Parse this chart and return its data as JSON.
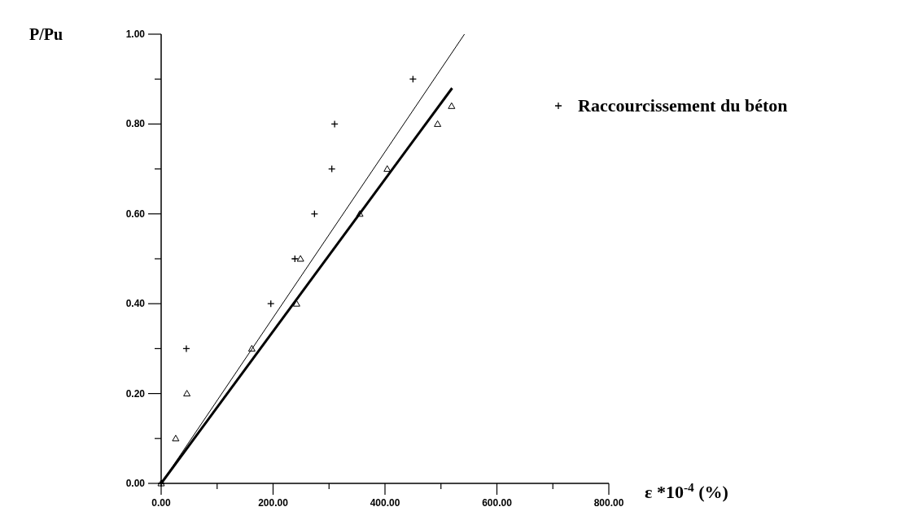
{
  "chart_data": {
    "type": "scatter",
    "xlabel": "ε *10$^{-4}$ (%)",
    "ylabel": "P/Pu",
    "xlim": [
      0,
      800
    ],
    "ylim": [
      0,
      1
    ],
    "xticks": [
      {
        "value": 0,
        "label": "0.00"
      },
      {
        "value": 100,
        "label": null
      },
      {
        "value": 200,
        "label": "200.00"
      },
      {
        "value": 300,
        "label": null
      },
      {
        "value": 400,
        "label": "400.00"
      },
      {
        "value": 500,
        "label": null
      },
      {
        "value": 600,
        "label": "600.00"
      },
      {
        "value": 700,
        "label": null
      },
      {
        "value": 800,
        "label": "800.00"
      }
    ],
    "yticks": [
      {
        "value": 0,
        "label": "0.00"
      },
      {
        "value": 0.1,
        "label": null
      },
      {
        "value": 0.2,
        "label": "0.20"
      },
      {
        "value": 0.3,
        "label": null
      },
      {
        "value": 0.4,
        "label": "0.40"
      },
      {
        "value": 0.5,
        "label": null
      },
      {
        "value": 0.6,
        "label": "0.60"
      },
      {
        "value": 0.7,
        "label": null
      },
      {
        "value": 0.8,
        "label": "0.80"
      },
      {
        "value": 0.9,
        "label": null
      },
      {
        "value": 1,
        "label": "1.00"
      }
    ],
    "grid": false,
    "legend": "right",
    "series": [
      {
        "name": "Raccourcissement du béton",
        "marker": "cross",
        "color": "#000000",
        "x": [
          0,
          45,
          196,
          239,
          274,
          305,
          310,
          450
        ],
        "values": [
          0,
          0.3,
          0.4,
          0.5,
          0.6,
          0.7,
          0.8,
          0.9
        ]
      },
      {
        "marker": "triangle",
        "color": "#000000",
        "x": [
          0,
          26,
          46,
          162,
          242,
          249,
          355,
          404,
          494,
          519
        ],
        "values": [
          0,
          0.1,
          0.2,
          0.3,
          0.4,
          0.5,
          0.6,
          0.7,
          0.8,
          0.84
        ]
      },
      {
        "type": "line",
        "marker": "none",
        "color": "#000000",
        "x": [
          0,
          542
        ],
        "values": [
          0,
          1
        ]
      },
      {
        "type": "line",
        "marker": "none",
        "color": "#000000",
        "x": [
          0,
          520
        ],
        "values": [
          0,
          0.88
        ]
      }
    ]
  }
}
